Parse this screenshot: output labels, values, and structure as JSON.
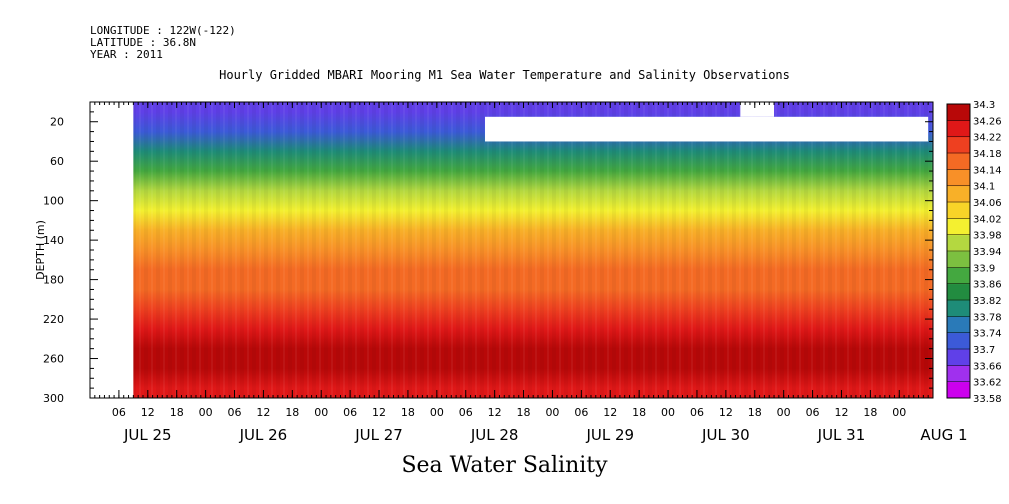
{
  "header": {
    "longitude": "LONGITUDE : 122W(-122)",
    "latitude": "LATITUDE : 36.8N",
    "year": "YEAR : 2011"
  },
  "chart_title": "Hourly Gridded MBARI Mooring M1 Sea Water Temperature and Salinity Observations",
  "bottom_title": "Sea Water Salinity",
  "colors": {
    "missing": "#ffffff",
    "scale": [
      "#cc00ee",
      "#a030ee",
      "#6040e8",
      "#3c5ad8",
      "#2a7ab8",
      "#1e8c78",
      "#228c40",
      "#44a840",
      "#7cc040",
      "#b4d840",
      "#f4f030",
      "#f8d428",
      "#f8b028",
      "#f89028",
      "#f46a24",
      "#ee4020",
      "#e01818",
      "#b80808"
    ]
  },
  "chart_data": {
    "type": "heatmap",
    "title": "Hourly Gridded MBARI Mooring M1 Sea Water Temperature and Salinity Observations",
    "ylabel": "DEPTH (m)",
    "y_reversed": true,
    "ylim": [
      300,
      0
    ],
    "yticks": [
      20,
      60,
      100,
      140,
      180,
      220,
      260,
      300
    ],
    "x_hour_labels": [
      "06",
      "12",
      "18",
      "00",
      "06",
      "12",
      "18",
      "00",
      "06",
      "12",
      "18",
      "00",
      "06",
      "12",
      "18",
      "00",
      "06",
      "12",
      "18",
      "00",
      "06",
      "12",
      "18",
      "00",
      "06",
      "12",
      "18",
      "00"
    ],
    "x_day_labels": [
      "JUL 25",
      "JUL 26",
      "JUL 27",
      "JUL 28",
      "JUL 29",
      "JUL 30",
      "JUL 31",
      "AUG  1"
    ],
    "colorbar_levels": [
      "34.3",
      "34.26",
      "34.22",
      "34.18",
      "34.14",
      "34.1",
      "34.06",
      "34.02",
      "33.98",
      "33.94",
      "33.9",
      "33.86",
      "33.82",
      "33.78",
      "33.74",
      "33.7",
      "33.66",
      "33.62",
      "33.58"
    ],
    "depth_profile": [
      {
        "depth": 10,
        "salinity": 33.68
      },
      {
        "depth": 30,
        "salinity": 33.72
      },
      {
        "depth": 50,
        "salinity": 33.78
      },
      {
        "depth": 70,
        "salinity": 33.86
      },
      {
        "depth": 90,
        "salinity": 33.94
      },
      {
        "depth": 110,
        "salinity": 34.0
      },
      {
        "depth": 130,
        "salinity": 34.06
      },
      {
        "depth": 150,
        "salinity": 34.12
      },
      {
        "depth": 170,
        "salinity": 34.15
      },
      {
        "depth": 190,
        "salinity": 34.16
      },
      {
        "depth": 210,
        "salinity": 34.19
      },
      {
        "depth": 230,
        "salinity": 34.23
      },
      {
        "depth": 250,
        "salinity": 34.27
      },
      {
        "depth": 270,
        "salinity": 34.26
      },
      {
        "depth": 290,
        "salinity": 34.22
      }
    ],
    "missing_data_regions": [
      {
        "time_start": "JUL 25 00",
        "time_end": "JUL 25 09",
        "depth_range": [
          0,
          300
        ]
      },
      {
        "time_start": "JUL 28 10",
        "time_end": "AUG  1 06",
        "depth_range": [
          15,
          40
        ]
      },
      {
        "time_start": "JUL 30 15",
        "time_end": "JUL 30 22",
        "depth_range": [
          0,
          15
        ]
      }
    ]
  }
}
